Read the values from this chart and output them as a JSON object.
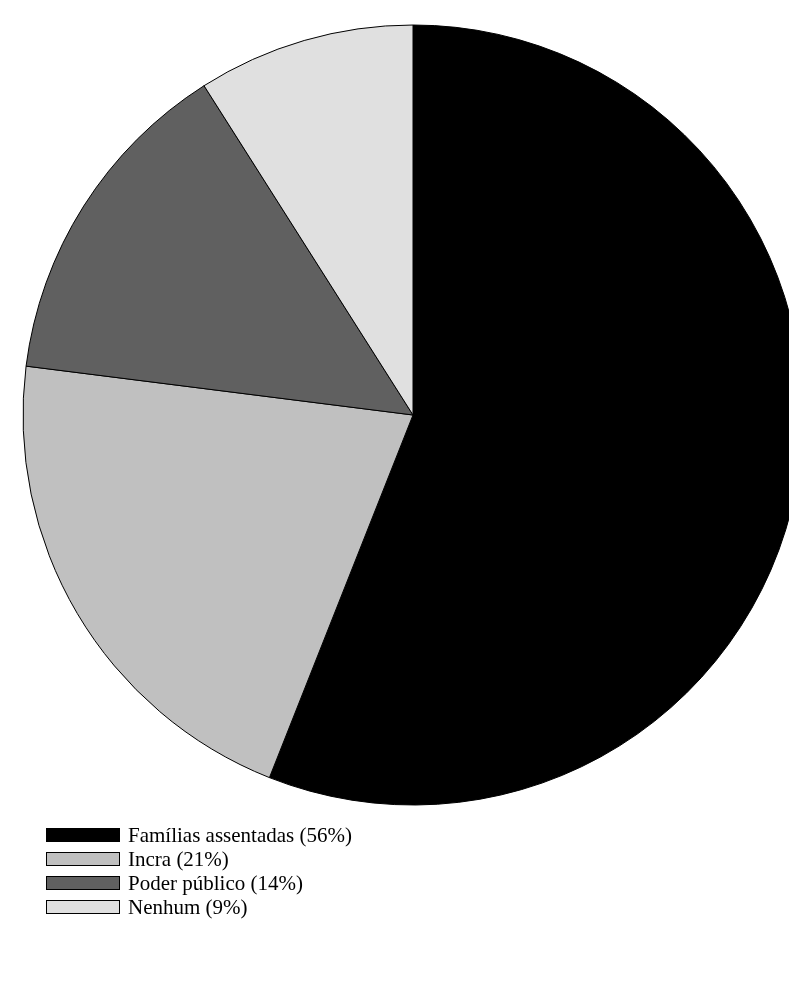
{
  "chart_data": {
    "type": "pie",
    "categories": [
      "Famílias assentadas (56%)",
      "Incra (21%)",
      "Poder público (14%)",
      "Nenhum (9%)"
    ],
    "values": [
      56,
      21,
      14,
      9
    ],
    "colors": [
      "#000000",
      "#c0c0c0",
      "#606060",
      "#e0e0e0"
    ],
    "legend": "bottom left"
  }
}
